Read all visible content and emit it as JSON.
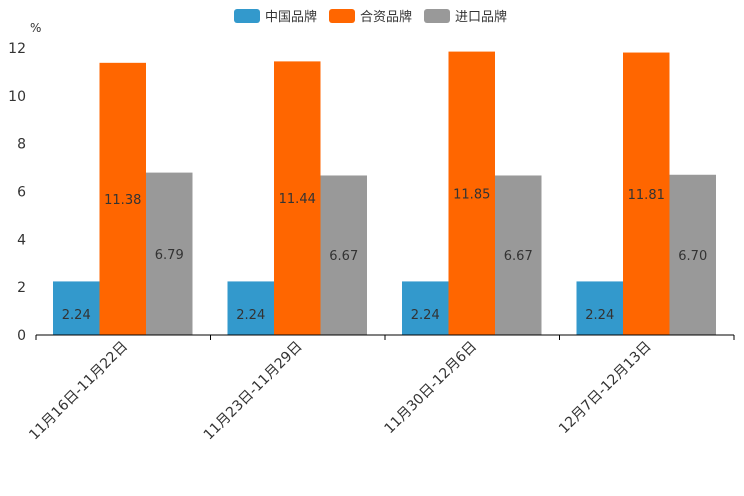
{
  "chart_data": {
    "type": "bar",
    "unit": "%",
    "categories": [
      "11月16日-11月22日",
      "11月23日-11月29日",
      "11月30日-12月6日",
      "12月7日-12月13日"
    ],
    "series": [
      {
        "name": "中国品牌",
        "color": "#3399cc",
        "values": [
          2.24,
          2.24,
          2.24,
          2.24
        ],
        "labels": [
          "2.24",
          "2.24",
          "2.24",
          "2.24"
        ]
      },
      {
        "name": "合资品牌",
        "color": "#ff6600",
        "values": [
          11.38,
          11.44,
          11.85,
          11.81
        ],
        "labels": [
          "11.38",
          "11.44",
          "11.85",
          "11.81"
        ]
      },
      {
        "name": "进口品牌",
        "color": "#999999",
        "values": [
          6.79,
          6.67,
          6.67,
          6.7
        ],
        "labels": [
          "6.79",
          "6.67",
          "6.67",
          "6.70"
        ]
      }
    ],
    "yticks": [
      "0",
      "2",
      "4",
      "6",
      "8",
      "10",
      "12"
    ],
    "ylim": [
      0,
      12
    ],
    "legend_position": "top-center",
    "grid": false
  }
}
